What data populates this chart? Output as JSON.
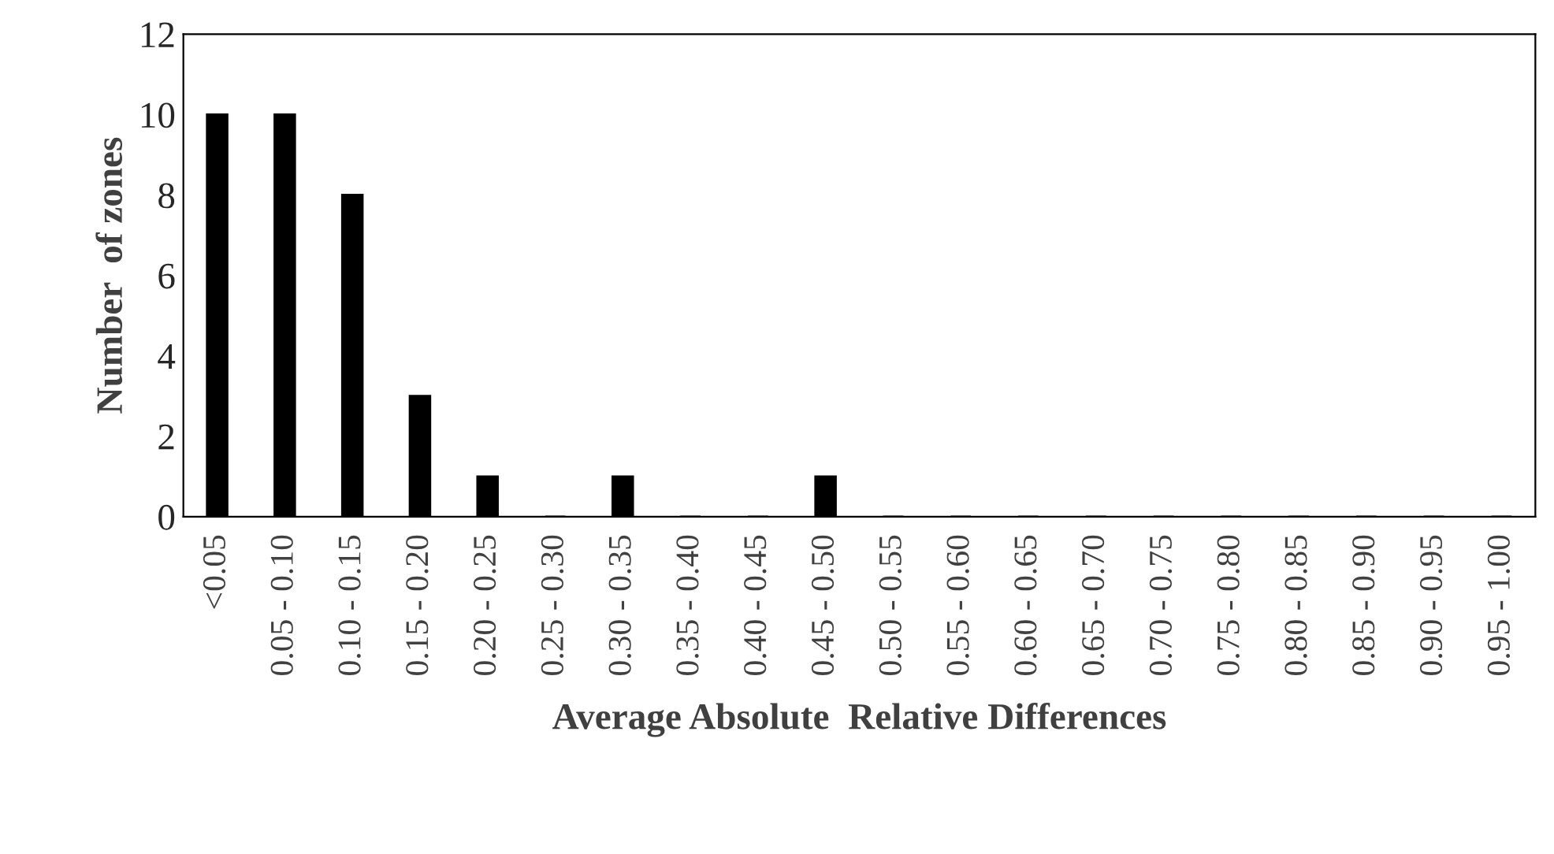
{
  "chart_data": {
    "type": "bar",
    "xlabel": "Average Absolute  Relative Differences",
    "ylabel": "Number  of zones",
    "categories": [
      "<0.05",
      "0.05 - 0.10",
      "0.10 - 0.15",
      "0.15 - 0.20",
      "0.20 - 0.25",
      "0.25 - 0.30",
      "0.30 - 0.35",
      "0.35 - 0.40",
      "0.40 - 0.45",
      "0.45 - 0.50",
      "0.50 - 0.55",
      "0.55 - 0.60",
      "0.60 - 0.65",
      "0.65 - 0.70",
      "0.70 - 0.75",
      "0.75 - 0.80",
      "0.80 - 0.85",
      "0.85 - 0.90",
      "0.90 - 0.95",
      "0.95 - 1.00"
    ],
    "values": [
      10,
      10,
      8,
      3,
      1,
      0,
      1,
      0,
      0,
      1,
      0,
      0,
      0,
      0,
      0,
      0,
      0,
      0,
      0,
      0
    ],
    "color": "#000000",
    "ylim": [
      0,
      12
    ],
    "yticks": [
      0,
      2,
      4,
      6,
      8,
      10,
      12
    ],
    "grid": false
  }
}
